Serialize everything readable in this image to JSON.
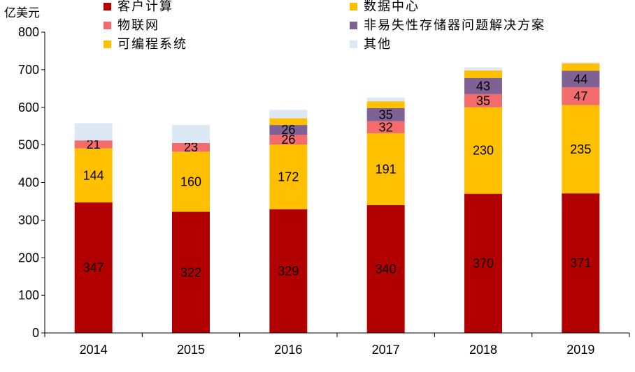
{
  "chart_data": {
    "type": "bar",
    "stacked": true,
    "unit_label": "亿美元",
    "categories": [
      "2014",
      "2015",
      "2016",
      "2017",
      "2018",
      "2019"
    ],
    "ylim": [
      0,
      800
    ],
    "yticks": [
      0,
      100,
      200,
      300,
      400,
      500,
      600,
      700,
      800
    ],
    "series": [
      {
        "name": "客户计算",
        "color": "#B20000",
        "label_color": "#ffffff",
        "values": [
          347,
          322,
          329,
          340,
          370,
          371
        ],
        "labels": [
          "347",
          "322",
          "329",
          "340",
          "370",
          "371"
        ]
      },
      {
        "name": "可编程系统",
        "color": "#FFC000",
        "label_color": "#000000",
        "values": [
          144,
          160,
          172,
          191,
          230,
          235
        ],
        "labels": [
          "144",
          "160",
          "172",
          "191",
          "230",
          "235"
        ]
      },
      {
        "name": "物联网",
        "color": "#F36B6B",
        "label_color": "#ffffff",
        "values": [
          21,
          23,
          26,
          32,
          35,
          47
        ],
        "labels": [
          "21",
          "23",
          "26",
          "32",
          "35",
          "47"
        ]
      },
      {
        "name": "非易失性存储器问题解决方案",
        "color": "#7F6196",
        "label_color": "#ffffff",
        "values": [
          0,
          0,
          26,
          35,
          43,
          44
        ],
        "labels": [
          "",
          "",
          "26",
          "35",
          "43",
          "44"
        ]
      },
      {
        "name": "数据中心",
        "color": "#FFC000",
        "label_color": "#000000",
        "values": [
          0,
          0,
          18,
          18,
          20,
          20
        ],
        "labels": [
          "",
          "",
          "",
          "",
          "",
          ""
        ]
      },
      {
        "name": "其他",
        "color": "#DCE8F5",
        "label_color": "#000000",
        "values": [
          46,
          48,
          22,
          10,
          8,
          3
        ],
        "labels": [
          "",
          "",
          "",
          "",
          "",
          ""
        ]
      }
    ],
    "legend": {
      "placement": "top",
      "entries": [
        {
          "name": "客户计算",
          "color": "#B20000"
        },
        {
          "name": "数据中心",
          "color": "#FFC000"
        },
        {
          "name": "物联网",
          "color": "#F36B6B"
        },
        {
          "name": "非易失性存储器问题解决方案",
          "color": "#7F6196"
        },
        {
          "name": "可编程系统",
          "color": "#FFC000"
        },
        {
          "name": "其他",
          "color": "#DCE8F5"
        }
      ]
    }
  }
}
